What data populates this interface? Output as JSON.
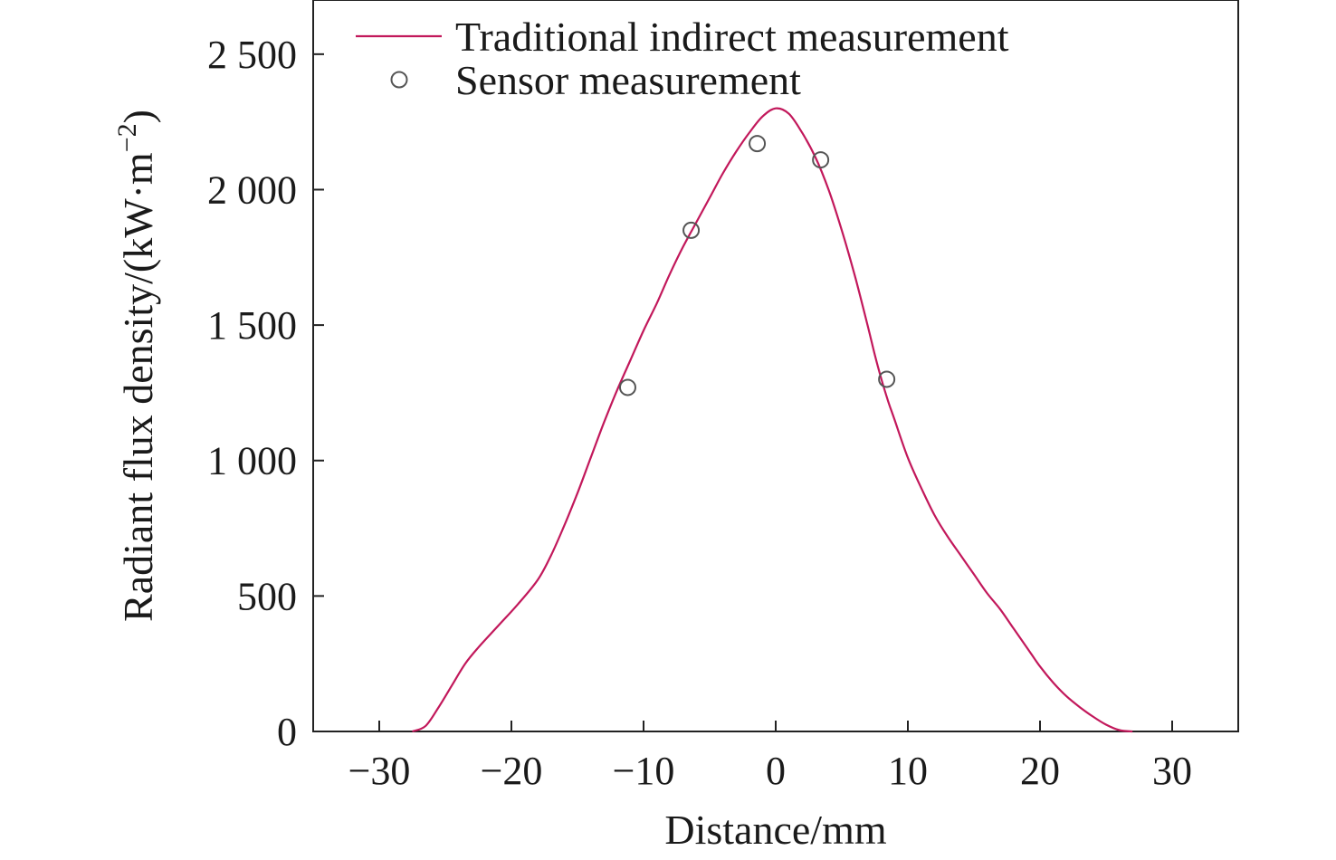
{
  "chart_data": {
    "type": "line",
    "title": "",
    "xlabel": "Distance/mm",
    "ylabel_parts": {
      "main": "Radiant flux density/(kW·m",
      "sup": "−2",
      "close": ")"
    },
    "xlim": [
      -35,
      35
    ],
    "ylim": [
      0,
      2700
    ],
    "x_ticks": [
      {
        "value": -30,
        "label": "−30"
      },
      {
        "value": -20,
        "label": "−20"
      },
      {
        "value": -10,
        "label": "−10"
      },
      {
        "value": 0,
        "label": "0"
      },
      {
        "value": 10,
        "label": "10"
      },
      {
        "value": 20,
        "label": "20"
      },
      {
        "value": 30,
        "label": "30"
      }
    ],
    "y_ticks": [
      {
        "value": 0,
        "label": "0"
      },
      {
        "value": 500,
        "label": "500"
      },
      {
        "value": 1000,
        "label": "1 000"
      },
      {
        "value": 1500,
        "label": "1 500"
      },
      {
        "value": 2000,
        "label": "2 000"
      },
      {
        "value": 2500,
        "label": "2 500"
      }
    ],
    "grid": false,
    "legend_position": "top-left",
    "series": [
      {
        "name": "Traditional indirect measurement",
        "kind": "line",
        "color": "#c2185b",
        "x": [
          -27.5,
          -26.5,
          -25.5,
          -24.5,
          -23.5,
          -22.5,
          -21.0,
          -19.5,
          -18.0,
          -17.0,
          -16.0,
          -15.0,
          -14.0,
          -13.0,
          -12.0,
          -11.0,
          -10.0,
          -9.0,
          -8.0,
          -7.0,
          -6.0,
          -5.0,
          -4.0,
          -3.0,
          -2.0,
          -1.0,
          0.0,
          1.0,
          2.0,
          3.0,
          4.0,
          5.0,
          6.0,
          7.0,
          7.5,
          8.0,
          8.5,
          9.0,
          10.0,
          11.0,
          12.0,
          13.0,
          14.0,
          15.0,
          16.0,
          17.0,
          18.0,
          19.0,
          20.0,
          21.0,
          22.0,
          23.0,
          24.0,
          25.0,
          26.0,
          27.0
        ],
        "y": [
          0,
          20,
          90,
          170,
          250,
          310,
          390,
          470,
          560,
          650,
          760,
          880,
          1010,
          1140,
          1260,
          1370,
          1480,
          1580,
          1690,
          1790,
          1880,
          1970,
          2060,
          2140,
          2210,
          2270,
          2300,
          2280,
          2210,
          2120,
          2000,
          1850,
          1680,
          1490,
          1390,
          1300,
          1220,
          1150,
          1010,
          900,
          800,
          720,
          650,
          580,
          510,
          450,
          380,
          310,
          240,
          180,
          130,
          90,
          55,
          25,
          5,
          0
        ]
      },
      {
        "name": "Sensor measurement",
        "kind": "scatter",
        "color": "#555555",
        "x": [
          -11.2,
          -6.4,
          -1.4,
          3.4,
          8.4
        ],
        "y": [
          1270,
          1850,
          2170,
          2110,
          1300
        ]
      }
    ]
  }
}
